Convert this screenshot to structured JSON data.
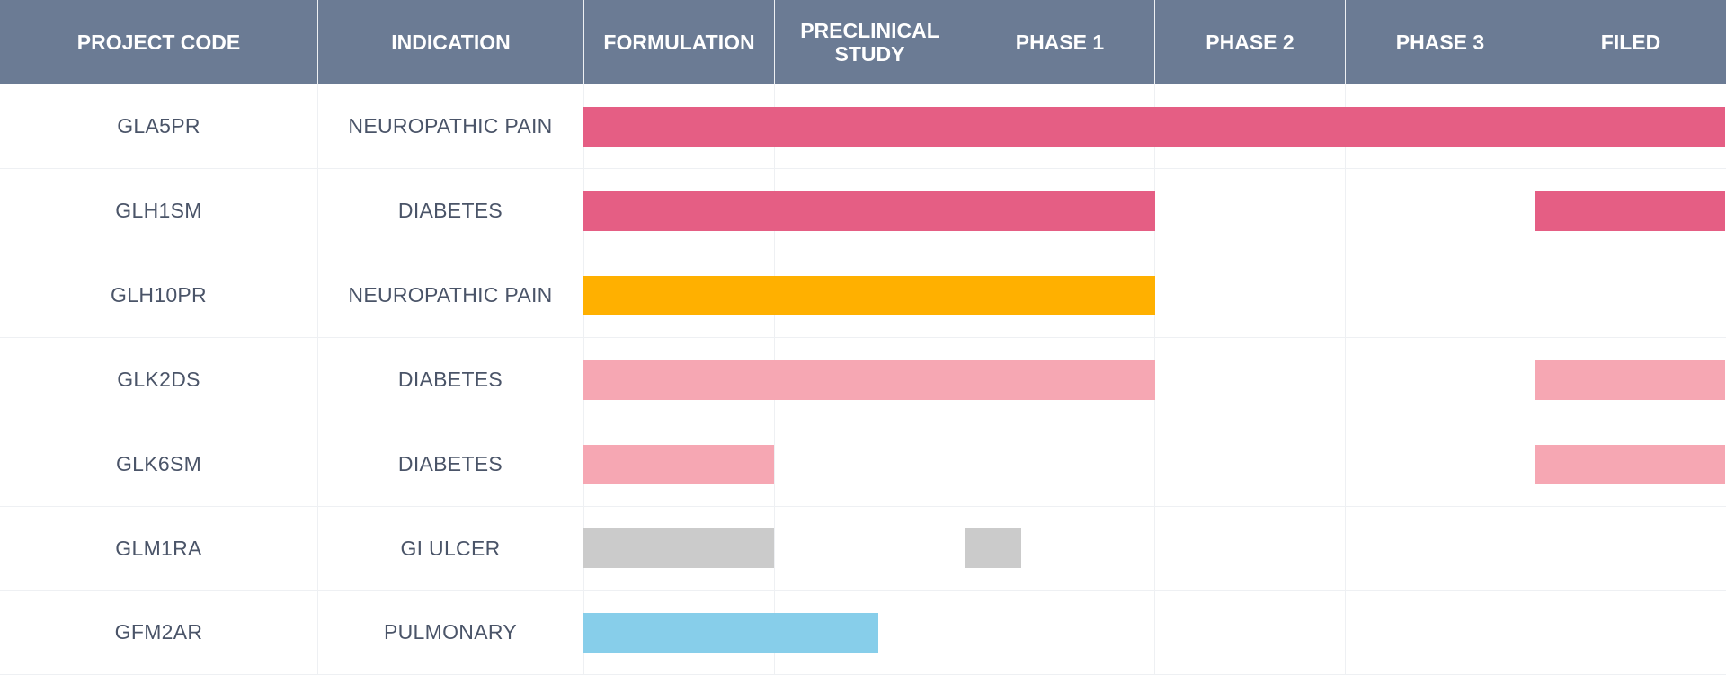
{
  "chart_data": {
    "type": "table",
    "columns": [
      "PROJECT CODE",
      "INDICATION",
      "FORMULATION",
      "PRECLINICAL\nSTUDY",
      "PHASE 1",
      "PHASE 2",
      "PHASE 3",
      "FILED"
    ],
    "stages": [
      "FORMULATION",
      "PRECLINICAL STUDY",
      "PHASE 1",
      "PHASE 2",
      "PHASE 3",
      "FILED"
    ],
    "rows": [
      {
        "code": "GLA5PR",
        "indication": "NEUROPATHIC PAIN",
        "color": "#e55e84",
        "bars": [
          {
            "from": 0,
            "to": 6
          }
        ]
      },
      {
        "code": "GLH1SM",
        "indication": "DIABETES",
        "color": "#e55e84",
        "bars": [
          {
            "from": 0,
            "to": 3
          },
          {
            "from": 5,
            "to": 6
          }
        ]
      },
      {
        "code": "GLH10PR",
        "indication": "NEUROPATHIC PAIN",
        "color": "#ffb000",
        "bars": [
          {
            "from": 0,
            "to": 3
          }
        ]
      },
      {
        "code": "GLK2DS",
        "indication": "DIABETES",
        "color": "#f6a7b3",
        "bars": [
          {
            "from": 0,
            "to": 3
          },
          {
            "from": 5,
            "to": 6
          }
        ]
      },
      {
        "code": "GLK6SM",
        "indication": "DIABETES",
        "color": "#f6a7b3",
        "bars": [
          {
            "from": 0,
            "to": 1
          },
          {
            "from": 5,
            "to": 6
          }
        ]
      },
      {
        "code": "GLM1RA",
        "indication": "GI ULCER",
        "color": "#cbcbcb",
        "bars": [
          {
            "from": 0,
            "to": 1
          },
          {
            "from": 2,
            "to": 2.3
          }
        ]
      },
      {
        "code": "GFM2AR",
        "indication": "PULMONARY",
        "color": "#87ceea",
        "bars": [
          {
            "from": 0,
            "to": 1.55
          }
        ]
      }
    ]
  }
}
